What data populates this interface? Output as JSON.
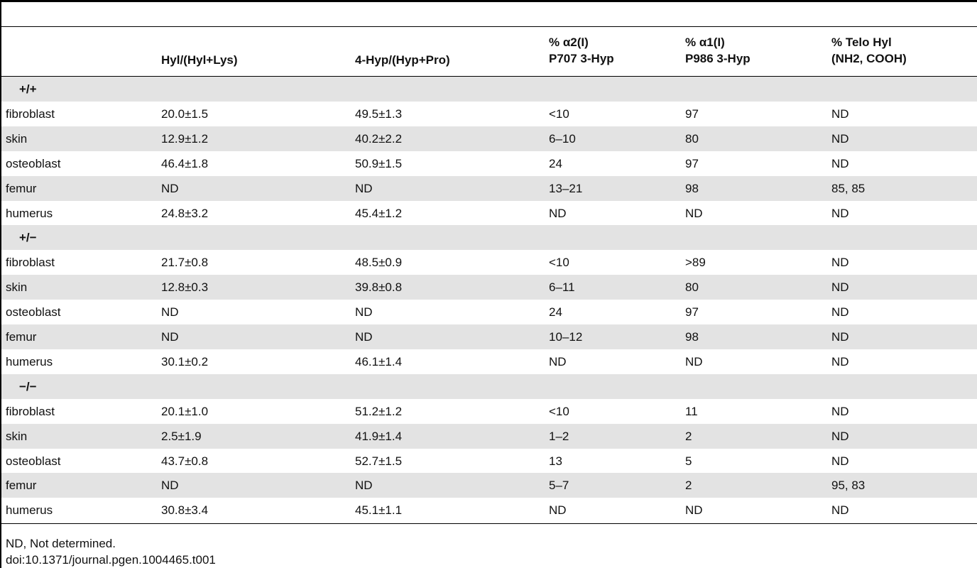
{
  "table": {
    "header": [
      [
        "Hyl/(Hyl+Lys)"
      ],
      [
        "4-Hyp/(Hyp+Pro)"
      ],
      [
        "% α2(I)",
        "P707 3-Hyp"
      ],
      [
        "% α1(I)",
        "P986 3-Hyp"
      ],
      [
        "% Telo Hyl",
        "(NH2, COOH)"
      ]
    ],
    "groups": [
      {
        "label": "+/+",
        "rows": [
          [
            "fibroblast",
            "20.0±1.5",
            "49.5±1.3",
            "<10",
            "97",
            "ND"
          ],
          [
            "skin",
            "12.9±1.2",
            "40.2±2.2",
            "6–10",
            "80",
            "ND"
          ],
          [
            "osteoblast",
            "46.4±1.8",
            "50.9±1.5",
            "24",
            "97",
            "ND"
          ],
          [
            "femur",
            "ND",
            "ND",
            "13–21",
            "98",
            "85, 85"
          ],
          [
            "humerus",
            "24.8±3.2",
            "45.4±1.2",
            "ND",
            "ND",
            "ND"
          ]
        ]
      },
      {
        "label": "+/−",
        "rows": [
          [
            "fibroblast",
            "21.7±0.8",
            "48.5±0.9",
            "<10",
            ">89",
            "ND"
          ],
          [
            "skin",
            "12.8±0.3",
            "39.8±0.8",
            "6–11",
            "80",
            "ND"
          ],
          [
            "osteoblast",
            "ND",
            "ND",
            "24",
            "97",
            "ND"
          ],
          [
            "femur",
            "ND",
            "ND",
            "10–12",
            "98",
            "ND"
          ],
          [
            "humerus",
            "30.1±0.2",
            "46.1±1.4",
            "ND",
            "ND",
            "ND"
          ]
        ]
      },
      {
        "label": "−/−",
        "rows": [
          [
            "fibroblast",
            "20.1±1.0",
            "51.2±1.2",
            "<10",
            "11",
            "ND"
          ],
          [
            "skin",
            "2.5±1.9",
            "41.9±1.4",
            "1–2",
            "2",
            "ND"
          ],
          [
            "osteoblast",
            "43.7±0.8",
            "52.7±1.5",
            "13",
            "5",
            "ND"
          ],
          [
            "femur",
            "ND",
            "ND",
            "5–7",
            "2",
            "95, 83"
          ],
          [
            "humerus",
            "30.8±3.4",
            "45.1±1.1",
            "ND",
            "ND",
            "ND"
          ]
        ]
      }
    ],
    "footnote": "ND, Not determined.",
    "doi": "doi:10.1371/journal.pgen.1004465.t001"
  }
}
